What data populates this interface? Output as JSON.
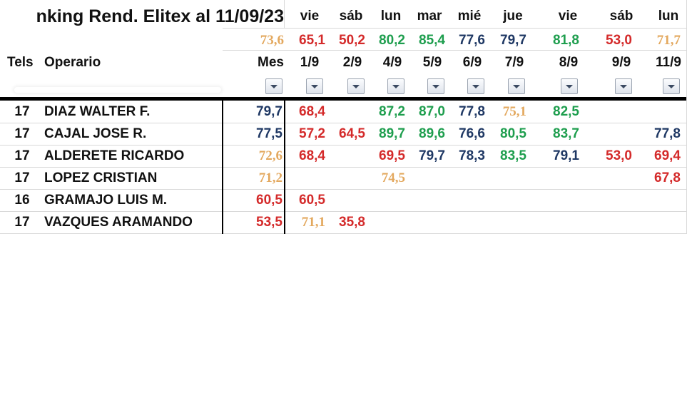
{
  "title": "nking Rend. Elitex al 11/09/23",
  "colors": {
    "dark": "#1f3864",
    "red": "#d42a2a",
    "green": "#1e9e4e",
    "gold": "#e3a85e"
  },
  "weekdays": [
    "vie",
    "sáb",
    "lun",
    "mar",
    "mié",
    "jue",
    "vie",
    "sáb",
    "lun"
  ],
  "averages": [
    {
      "value": "73,6",
      "color": "gold"
    },
    {
      "value": "65,1",
      "color": "red"
    },
    {
      "value": "50,2",
      "color": "red"
    },
    {
      "value": "80,2",
      "color": "green"
    },
    {
      "value": "85,4",
      "color": "green"
    },
    {
      "value": "77,6",
      "color": "dark"
    },
    {
      "value": "79,7",
      "color": "dark"
    },
    {
      "value": "81,8",
      "color": "green"
    },
    {
      "value": "53,0",
      "color": "red"
    },
    {
      "value": "71,7",
      "color": "gold"
    }
  ],
  "headers": {
    "tels": "Tels",
    "operario": "Operario",
    "mes": "Mes",
    "dates": [
      "1/9",
      "2/9",
      "4/9",
      "5/9",
      "6/9",
      "7/9",
      "8/9",
      "9/9",
      "11/9"
    ]
  },
  "filter_icon": "dropdown-arrow-icon",
  "rows": [
    {
      "tels": "17",
      "name": "DIAZ WALTER F.",
      "mes": {
        "value": "79,7",
        "color": "dark"
      },
      "days": [
        {
          "value": "68,4",
          "color": "red"
        },
        null,
        {
          "value": "87,2",
          "color": "green"
        },
        {
          "value": "87,0",
          "color": "green"
        },
        {
          "value": "77,8",
          "color": "dark"
        },
        {
          "value": "75,1",
          "color": "gold"
        },
        {
          "value": "82,5",
          "color": "green"
        },
        null,
        null
      ]
    },
    {
      "tels": "17",
      "name": "CAJAL JOSE R.",
      "mes": {
        "value": "77,5",
        "color": "dark"
      },
      "days": [
        {
          "value": "57,2",
          "color": "red"
        },
        {
          "value": "64,5",
          "color": "red"
        },
        {
          "value": "89,7",
          "color": "green"
        },
        {
          "value": "89,6",
          "color": "green"
        },
        {
          "value": "76,6",
          "color": "dark"
        },
        {
          "value": "80,5",
          "color": "green"
        },
        {
          "value": "83,7",
          "color": "green"
        },
        null,
        {
          "value": "77,8",
          "color": "dark"
        }
      ]
    },
    {
      "tels": "17",
      "name": "ALDERETE RICARDO",
      "mes": {
        "value": "72,6",
        "color": "gold"
      },
      "days": [
        {
          "value": "68,4",
          "color": "red"
        },
        null,
        {
          "value": "69,5",
          "color": "red"
        },
        {
          "value": "79,7",
          "color": "dark"
        },
        {
          "value": "78,3",
          "color": "dark"
        },
        {
          "value": "83,5",
          "color": "green"
        },
        {
          "value": "79,1",
          "color": "dark"
        },
        {
          "value": "53,0",
          "color": "red"
        },
        {
          "value": "69,4",
          "color": "red"
        }
      ]
    },
    {
      "tels": "17",
      "name": "LOPEZ CRISTIAN",
      "mes": {
        "value": "71,2",
        "color": "gold"
      },
      "days": [
        null,
        null,
        {
          "value": "74,5",
          "color": "gold"
        },
        null,
        null,
        null,
        null,
        null,
        {
          "value": "67,8",
          "color": "red"
        }
      ]
    },
    {
      "tels": "16",
      "name": "GRAMAJO LUIS M.",
      "mes": {
        "value": "60,5",
        "color": "red"
      },
      "days": [
        {
          "value": "60,5",
          "color": "red"
        },
        null,
        null,
        null,
        null,
        null,
        null,
        null,
        null
      ]
    },
    {
      "tels": "17",
      "name": "VAZQUES ARAMANDO",
      "mes": {
        "value": "53,5",
        "color": "red"
      },
      "days": [
        {
          "value": "71,1",
          "color": "gold"
        },
        {
          "value": "35,8",
          "color": "red"
        },
        null,
        null,
        null,
        null,
        null,
        null,
        null
      ]
    }
  ]
}
